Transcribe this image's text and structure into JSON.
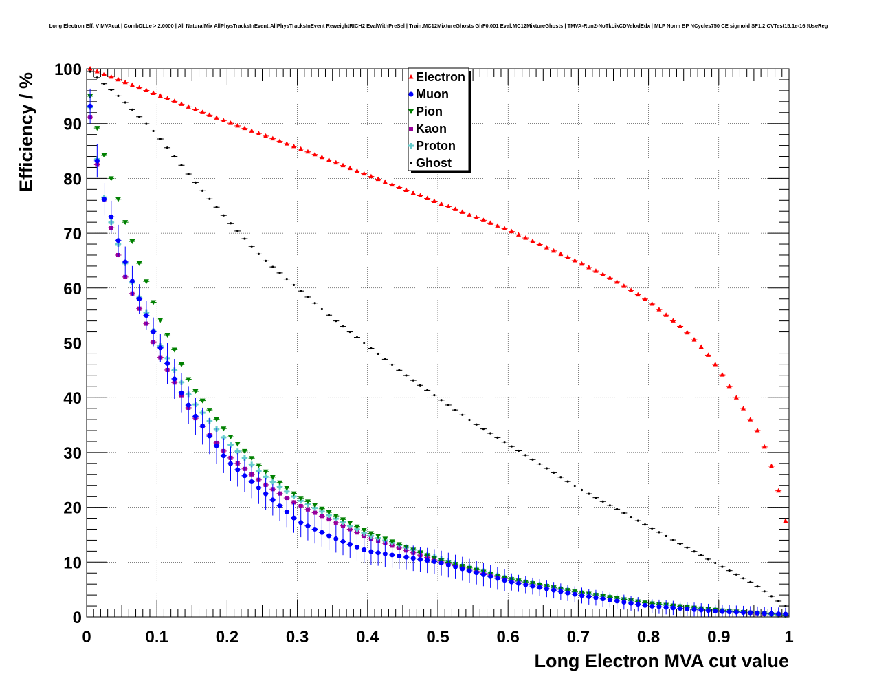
{
  "chart_data": {
    "type": "scatter",
    "title": "Long Electron Eff. V MVAcut | CombDLLe > 2.0000 | All NaturalMix AllPhysTracksInEvent:AllPhysTracksInEvent ReweightRICH2 EvalWithPreSel | Train:MC12MixtureGhosts GhF0.001 Eval:MC12MixtureGhosts | TMVA-Run2-NoTkLikCDVelodEdx | MLP Norm BP NCycles750 CE sigmoid SF1.2 CVTest15:1e-16 !UseReg",
    "xlabel": "Long Electron MVA cut value",
    "ylabel": "Efficiency / %",
    "xlim": [
      0,
      1
    ],
    "ylim": [
      0,
      100
    ],
    "x_ticks": [
      "0",
      "0.1",
      "0.2",
      "0.3",
      "0.4",
      "0.5",
      "0.6",
      "0.7",
      "0.8",
      "0.9",
      "1"
    ],
    "y_ticks": [
      "0",
      "10",
      "20",
      "30",
      "40",
      "50",
      "60",
      "70",
      "80",
      "90",
      "100"
    ],
    "grid": true,
    "legend_position": "top-center",
    "bins": 100,
    "series": [
      {
        "name": "Electron",
        "color": "#ff0000",
        "marker": "triangle-up",
        "anchors_x": [
          0.005,
          0.1,
          0.2,
          0.3,
          0.4,
          0.5,
          0.6,
          0.7,
          0.75,
          0.8,
          0.85,
          0.88,
          0.9,
          0.92,
          0.94,
          0.955,
          0.965,
          0.975,
          0.985,
          0.995
        ],
        "anchors_y": [
          100,
          95.3,
          90.3,
          85.6,
          80.6,
          75.6,
          70.6,
          64.7,
          61.5,
          57.6,
          52.5,
          48.6,
          45.2,
          41.0,
          37.0,
          34.0,
          31.0,
          27.5,
          23.0,
          17.5
        ],
        "error": 0.2
      },
      {
        "name": "Muon",
        "color": "#0000ff",
        "marker": "circle",
        "anchors_x": [
          0.005,
          0.015,
          0.025,
          0.035,
          0.05,
          0.07,
          0.1,
          0.13,
          0.15,
          0.2,
          0.25,
          0.3,
          0.35,
          0.4,
          0.5,
          0.6,
          0.7,
          0.8,
          0.9,
          0.995
        ],
        "anchors_y": [
          93.2,
          83.2,
          76.2,
          73.0,
          66.5,
          59.5,
          50.5,
          42.0,
          37.5,
          28.5,
          23.0,
          17.5,
          14.5,
          12.0,
          10.0,
          6.5,
          4.0,
          2.0,
          1.0,
          0.5
        ],
        "error_base": 1.0,
        "error_scale": 0.25
      },
      {
        "name": "Pion",
        "color": "#008000",
        "marker": "triangle-down",
        "anchors_x": [
          0.005,
          0.015,
          0.025,
          0.035,
          0.045,
          0.055,
          0.065,
          0.075,
          0.085,
          0.1,
          0.15,
          0.2,
          0.25,
          0.3,
          0.4,
          0.5,
          0.6,
          0.7,
          0.8,
          0.9,
          0.995
        ],
        "anchors_y": [
          95.0,
          89.2,
          84.2,
          80.0,
          76.2,
          72.0,
          68.5,
          64.5,
          61.2,
          55.5,
          42.0,
          33.5,
          27.0,
          22.0,
          15.5,
          10.5,
          7.0,
          4.5,
          2.5,
          1.2,
          0.3
        ],
        "error": 0.3
      },
      {
        "name": "Kaon",
        "color": "#990099",
        "marker": "square",
        "anchors_x": [
          0.005,
          0.015,
          0.025,
          0.035,
          0.045,
          0.055,
          0.065,
          0.085,
          0.1,
          0.15,
          0.2,
          0.25,
          0.3,
          0.4,
          0.5,
          0.6,
          0.7,
          0.8,
          0.9,
          0.995
        ],
        "anchors_y": [
          91.2,
          82.5,
          76.2,
          71.0,
          66.0,
          62.0,
          59.0,
          53.5,
          48.5,
          37.0,
          29.5,
          24.5,
          20.5,
          14.5,
          10.2,
          6.8,
          4.4,
          2.5,
          1.2,
          0.3
        ],
        "error": 0.4
      },
      {
        "name": "Proton",
        "color": "#66cccc",
        "marker": "cross",
        "anchors_x": [
          0.005,
          0.015,
          0.025,
          0.035,
          0.045,
          0.055,
          0.065,
          0.085,
          0.1,
          0.15,
          0.2,
          0.25,
          0.3,
          0.4,
          0.5,
          0.6,
          0.7,
          0.8,
          0.9,
          0.995
        ],
        "anchors_y": [
          93.0,
          83.5,
          76.5,
          72.0,
          68.0,
          64.5,
          61.0,
          55.5,
          50.5,
          39.5,
          32.0,
          26.0,
          21.5,
          15.0,
          10.8,
          7.0,
          4.5,
          2.5,
          1.2,
          0.3
        ],
        "error": 0.5
      },
      {
        "name": "Ghost",
        "color": "#000000",
        "marker": "point",
        "anchors_x": [
          0.005,
          0.05,
          0.1,
          0.15,
          0.2,
          0.25,
          0.3,
          0.35,
          0.4,
          0.45,
          0.5,
          0.55,
          0.6,
          0.65,
          0.7,
          0.75,
          0.8,
          0.85,
          0.9,
          0.95,
          0.995
        ],
        "anchors_y": [
          99.5,
          94.5,
          88.0,
          80.0,
          72.5,
          65.5,
          60.0,
          54.5,
          49.5,
          44.5,
          40.0,
          35.5,
          31.5,
          27.5,
          23.5,
          20.0,
          16.5,
          13.0,
          9.5,
          6.0,
          2.0
        ],
        "error": 0.1
      }
    ]
  }
}
